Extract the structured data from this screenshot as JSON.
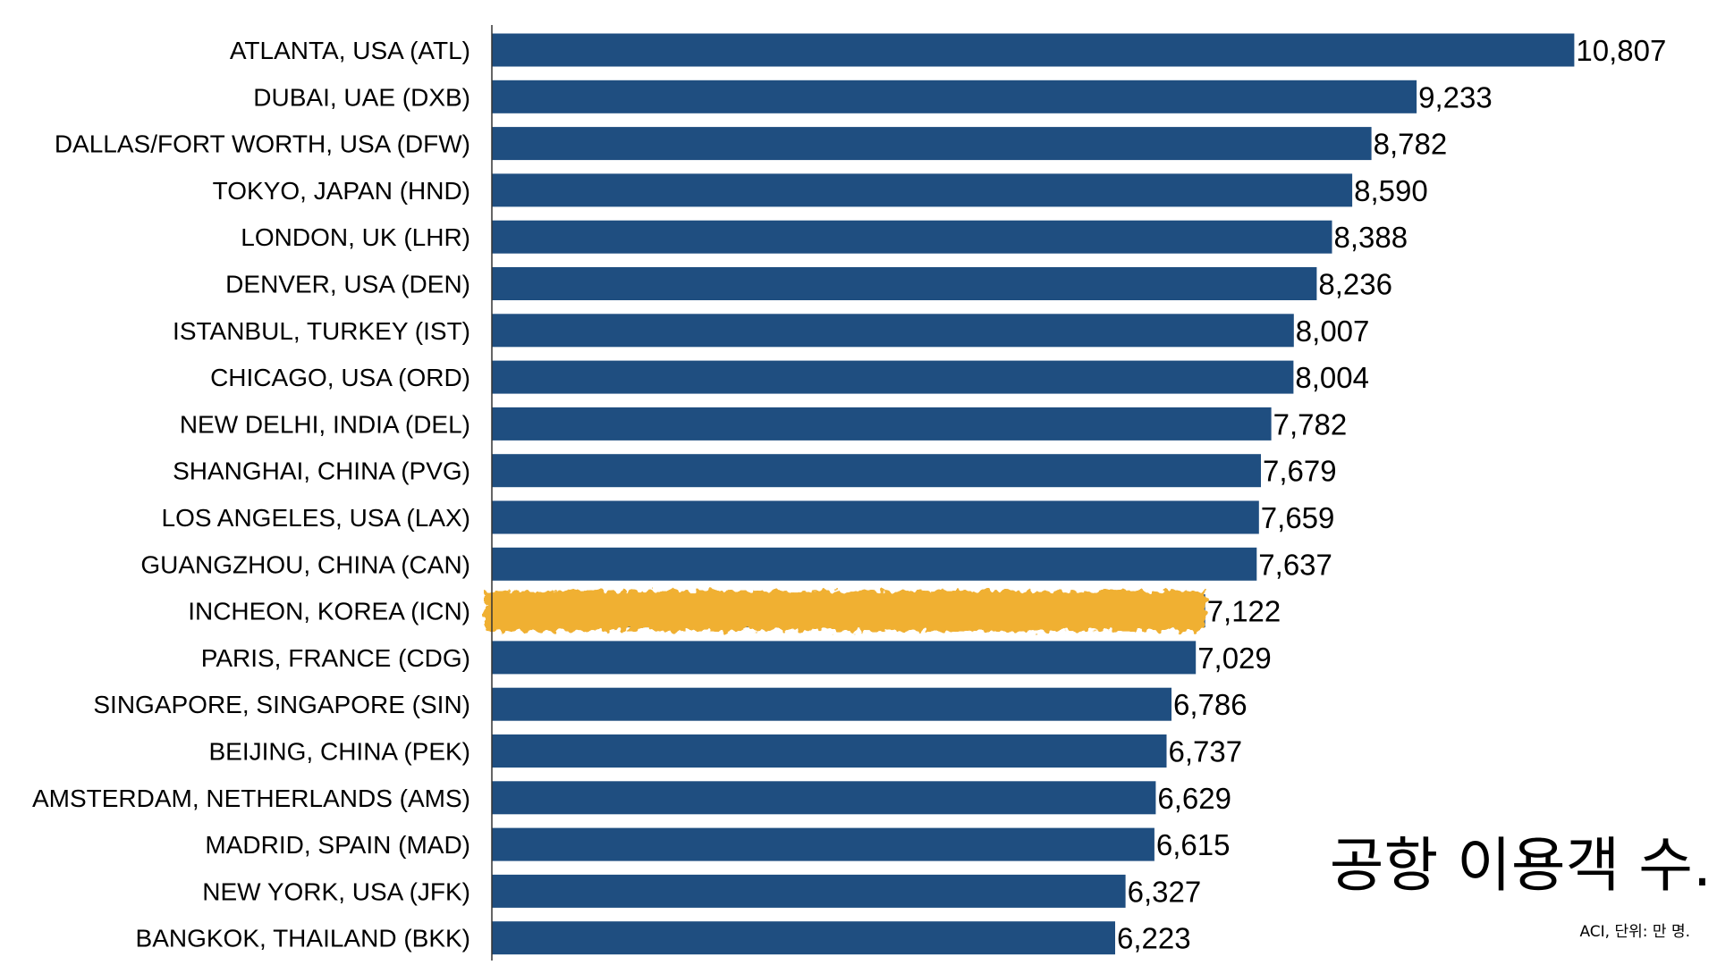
{
  "chart_data": {
    "type": "bar",
    "orientation": "horizontal",
    "title": "공항 이용객 수.",
    "source": "ACI, 단위: 만 명.",
    "xlim": [
      0,
      11250
    ],
    "grid": false,
    "legend": "none",
    "categories": [
      "ATLANTA, USA (ATL)",
      "DUBAI, UAE (DXB)",
      "DALLAS/FORT WORTH, USA (DFW)",
      "TOKYO, JAPAN (HND)",
      "LONDON, UK (LHR)",
      "DENVER, USA (DEN)",
      "ISTANBUL, TURKEY (IST)",
      "CHICAGO, USA (ORD)",
      "NEW DELHI, INDIA (DEL)",
      "SHANGHAI, CHINA (PVG)",
      "LOS ANGELES, USA (LAX)",
      "GUANGZHOU, CHINA (CAN)",
      "INCHEON, KOREA (ICN)",
      "PARIS, FRANCE (CDG)",
      "SINGAPORE, SINGAPORE (SIN)",
      "BEIJING, CHINA (PEK)",
      "AMSTERDAM, NETHERLANDS (AMS)",
      "MADRID, SPAIN (MAD)",
      "NEW YORK, USA (JFK)",
      "BANGKOK, THAILAND (BKK)"
    ],
    "values": [
      10807,
      9233,
      8782,
      8590,
      8388,
      8236,
      8007,
      8004,
      7782,
      7679,
      7659,
      7637,
      7122,
      7029,
      6786,
      6737,
      6629,
      6615,
      6327,
      6223
    ],
    "value_labels": [
      "10,807",
      "9,233",
      "8,782",
      "8,590",
      "8,388",
      "8,236",
      "8,007",
      "8,004",
      "7,782",
      "7,679",
      "7,659",
      "7,637",
      "7,122",
      "7,029",
      "6,786",
      "6,737",
      "6,629",
      "6,615",
      "6,327",
      "6,223"
    ],
    "highlighted_category": "INCHEON, KOREA (ICN)",
    "colors": {
      "bar": "#1f4e80",
      "highlight": "#f0b030",
      "axis": "#333333",
      "text": "#000000"
    }
  }
}
